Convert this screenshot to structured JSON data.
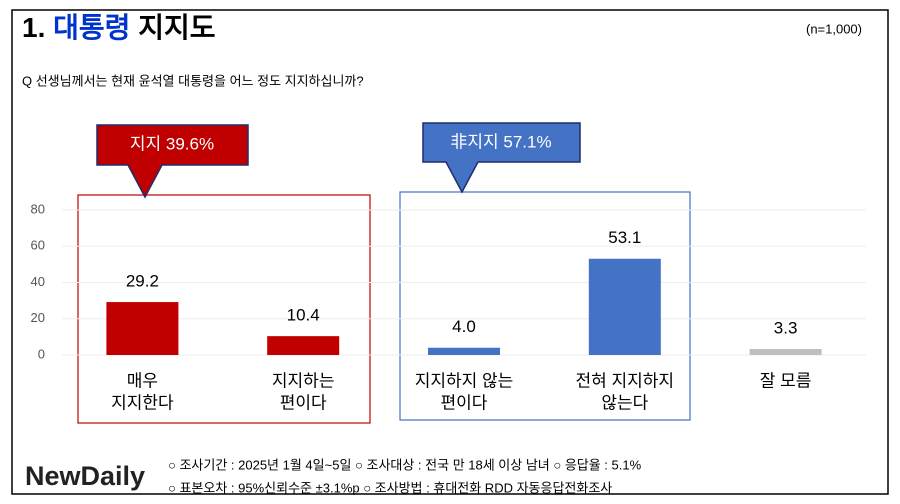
{
  "header": {
    "number": "1.",
    "highlight": "대통령",
    "title": "지지도",
    "sample": "(n=1,000)"
  },
  "question": "Q 선생님께서는 현재 윤석열 대통령을 어느 정도 지지하십니까?",
  "callouts": [
    "지지 39.6%",
    "非지지 57.1%"
  ],
  "chart_data": {
    "type": "bar",
    "categories": [
      [
        "매우",
        "지지한다"
      ],
      [
        "지지하는",
        "편이다"
      ],
      [
        "지지하지 않는",
        "편이다"
      ],
      [
        "전혀 지지하지",
        "않는다"
      ],
      [
        "잘 모름"
      ]
    ],
    "values": [
      29.2,
      10.4,
      4.0,
      53.1,
      3.3
    ],
    "value_labels": [
      "29.2",
      "10.4",
      "4.0",
      "53.1",
      "3.3"
    ],
    "colors": [
      "#c00000",
      "#c00000",
      "#4472c4",
      "#4472c4",
      "#bfbfbf"
    ],
    "ylim": [
      0,
      80
    ],
    "yticks": [
      0,
      20,
      40,
      60,
      80
    ],
    "grid": true
  },
  "footer": {
    "logo": "NewDaily",
    "lines": [
      "○ 조사기간 : 2025년 1월 4일~5일 ○ 조사대상 : 전국 만 18세 이상 남녀 ○ 응답율 : 5.1%",
      "○ 표본오차 : 95%신뢰수준 ±3.1%p ○ 조사방법 : 휴대전화 RDD 자동응답전화조사"
    ]
  }
}
